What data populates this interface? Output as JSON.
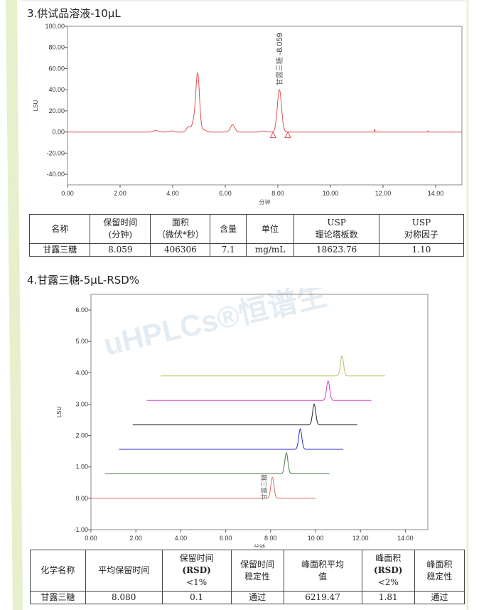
{
  "section3": {
    "heading": "3.供试品溶液-10μL"
  },
  "table1": {
    "headers": [
      [
        "名称"
      ],
      [
        "保留时间",
        "(分钟)"
      ],
      [
        "面积",
        "（微伏*秒）"
      ],
      [
        "含量"
      ],
      [
        "单位"
      ],
      [
        "USP",
        "理论塔板数"
      ],
      [
        "USP",
        "对称因子"
      ]
    ],
    "rows": [
      [
        "甘露三糖",
        "8.059",
        "406306",
        "7.1",
        "mg/mL",
        "18623.76",
        "1.10"
      ]
    ]
  },
  "section4": {
    "heading": "4.甘露三糖-5μL-RSD%"
  },
  "watermark": "uHPLCs®恒谱生",
  "table2": {
    "headers": [
      [
        "化学名称"
      ],
      [
        "平均保留时间"
      ],
      [
        "保留时间",
        "(RSD)",
        "<1%"
      ],
      [
        "保留时间",
        "稳定性"
      ],
      [
        "峰面积平均",
        "值"
      ],
      [
        "峰面积",
        "(RSD)",
        "<2%"
      ],
      [
        "峰面积",
        "稳定性"
      ]
    ],
    "rows": [
      [
        "甘露三糖",
        "8.080",
        "0.1",
        "通过",
        "6219.47",
        "1.81",
        "通过"
      ]
    ]
  },
  "chart_data": [
    {
      "type": "line",
      "xlabel": "分钟",
      "ylabel": "LSU",
      "xlim": [
        0,
        15
      ],
      "ylim": [
        -50,
        100
      ],
      "xticks": [
        "0.00",
        "2.00",
        "4.00",
        "6.00",
        "8.00",
        "10.00",
        "12.00",
        "14.00"
      ],
      "yticks": [
        "100.00",
        "80.00",
        "60.00",
        "40.00",
        "20.00",
        "0.00",
        "-20.00",
        "-40.00"
      ],
      "color": "#e05050",
      "peaks": [
        {
          "x": 3.35,
          "y": 1.5
        },
        {
          "x": 3.95,
          "y": 1
        },
        {
          "x": 4.6,
          "y": 5
        },
        {
          "x": 4.8,
          "y": 9
        },
        {
          "x": 4.95,
          "y": 55
        },
        {
          "x": 5.2,
          "y": 2
        },
        {
          "x": 6.28,
          "y": 7
        },
        {
          "x": 7.45,
          "y": 1
        },
        {
          "x": 8.059,
          "y": 40
        },
        {
          "x": 11.68,
          "y": 3
        },
        {
          "x": 13.7,
          "y": 1
        }
      ],
      "annotation": {
        "label": "甘露三糖",
        "value": "-8.059"
      },
      "integration_marks": [
        7.82,
        8.38
      ]
    },
    {
      "type": "line",
      "xlabel": "分钟",
      "ylabel": "LSU",
      "xlim": [
        0,
        15
      ],
      "ylim": [
        -1,
        6.5
      ],
      "xticks": [
        "0.00",
        "2.00",
        "4.00",
        "6.00",
        "8.00",
        "10.00",
        "12.00",
        "14.00"
      ],
      "yticks": [
        "6.00",
        "5.00",
        "4.00",
        "3.00",
        "2.00",
        "1.00",
        "0.00",
        "-1.00"
      ],
      "annotation": {
        "label": "甘露三糖"
      },
      "series": [
        {
          "color": "#e06a6a",
          "start": 0,
          "end": 10,
          "baseline": 0,
          "peak_x": 8.08,
          "peak_h": 0.67
        },
        {
          "color": "#4a7a4a",
          "start": 0.62,
          "end": 10.62,
          "baseline": 0.78,
          "peak_x": 8.7,
          "peak_h": 0.67
        },
        {
          "color": "#2a2ad0",
          "start": 1.24,
          "end": 11.24,
          "baseline": 1.56,
          "peak_x": 9.32,
          "peak_h": 0.65
        },
        {
          "color": "#222222",
          "start": 1.86,
          "end": 11.86,
          "baseline": 2.34,
          "peak_x": 9.94,
          "peak_h": 0.66
        },
        {
          "color": "#d040d0",
          "start": 2.48,
          "end": 12.48,
          "baseline": 3.12,
          "peak_x": 10.56,
          "peak_h": 0.62
        },
        {
          "color": "#c0c060",
          "start": 3.1,
          "end": 13.1,
          "baseline": 3.9,
          "peak_x": 11.18,
          "peak_h": 0.64
        }
      ]
    }
  ]
}
